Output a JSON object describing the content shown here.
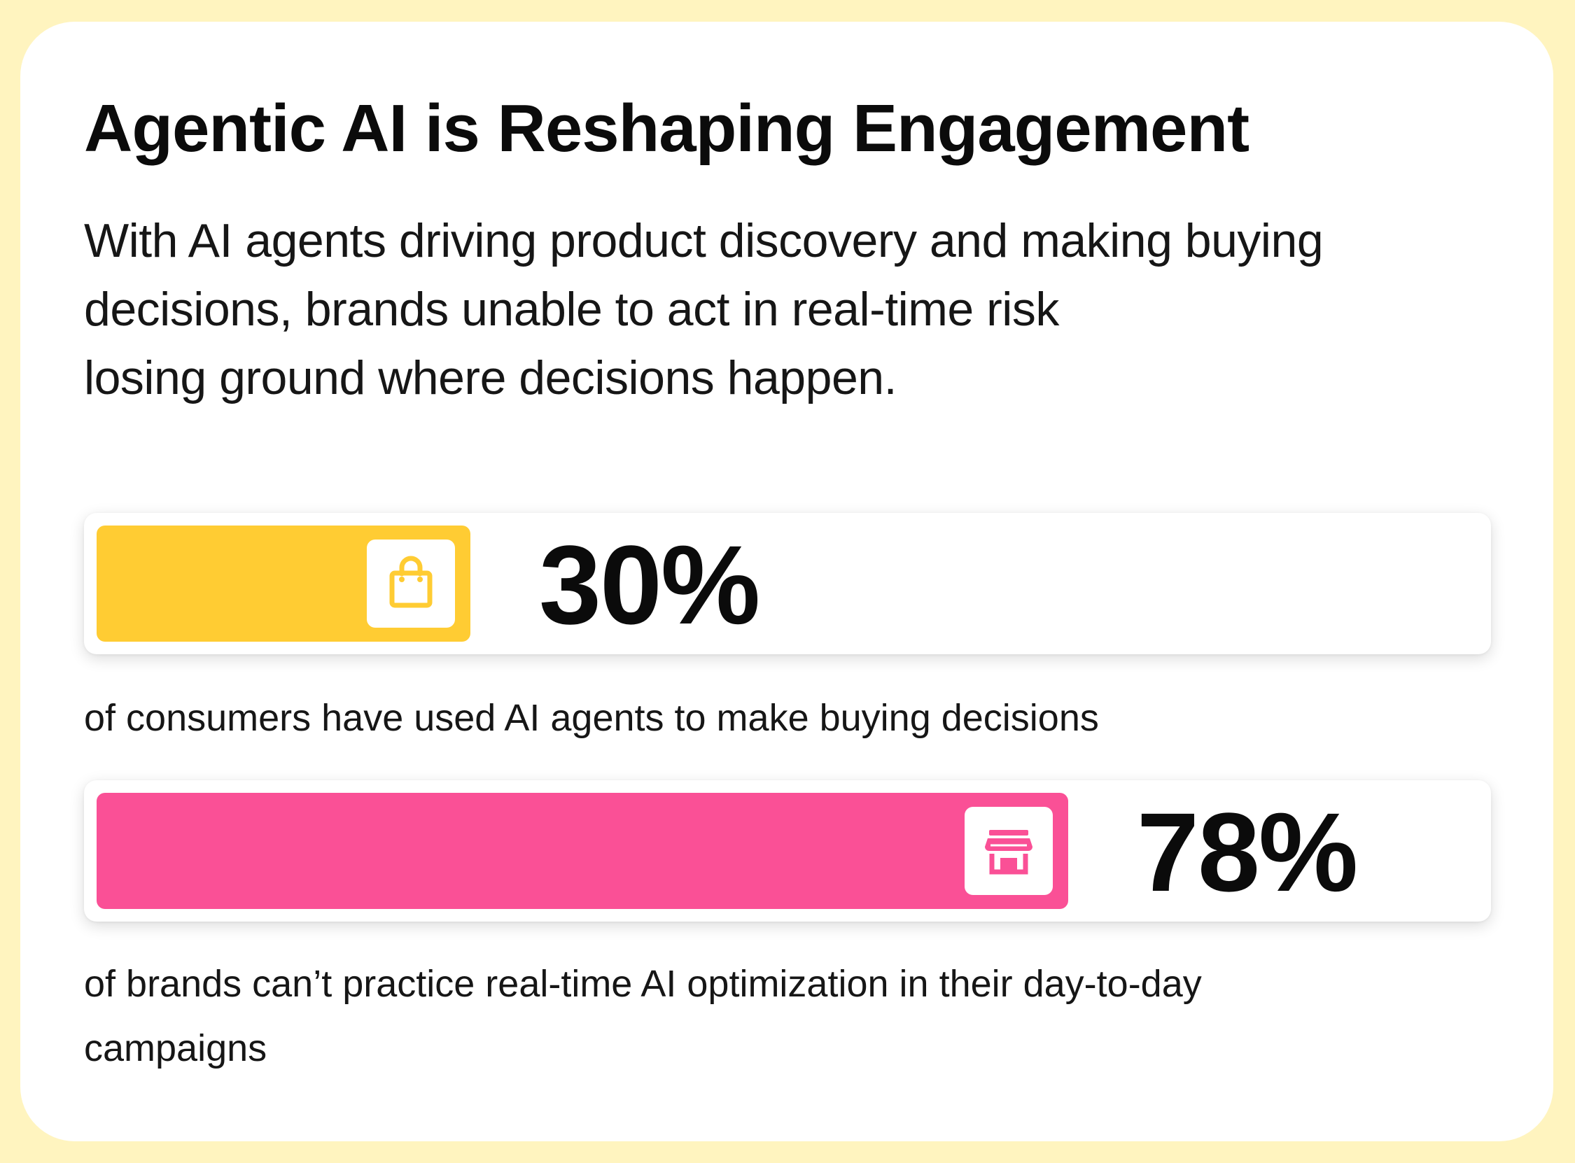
{
  "title": "Agentic AI is Reshaping Engagement",
  "subtitle_lines": [
    "With AI agents driving product discovery and making buying",
    "decisions, brands unable to act in real-time risk",
    "losing ground where decisions happen."
  ],
  "colors": {
    "background": "#FFF4BF",
    "card": "#FFFFFF",
    "bar_consumers": "#FFCC33",
    "bar_brands": "#FA5096"
  },
  "chart_data": {
    "type": "bar",
    "orientation": "horizontal",
    "unit": "%",
    "scale_max": 100,
    "stats": [
      {
        "value": 30,
        "label": "30%",
        "caption_lines": [
          "of consumers have used AI agents to make buying decisions"
        ],
        "color": "#FFCC33",
        "icon": "shopping-bag-icon"
      },
      {
        "value": 78,
        "label": "78%",
        "caption_lines": [
          "of brands can’t practice real-time AI optimization in their day-to-day",
          "campaigns"
        ],
        "color": "#FA5096",
        "icon": "storefront-icon"
      }
    ]
  }
}
